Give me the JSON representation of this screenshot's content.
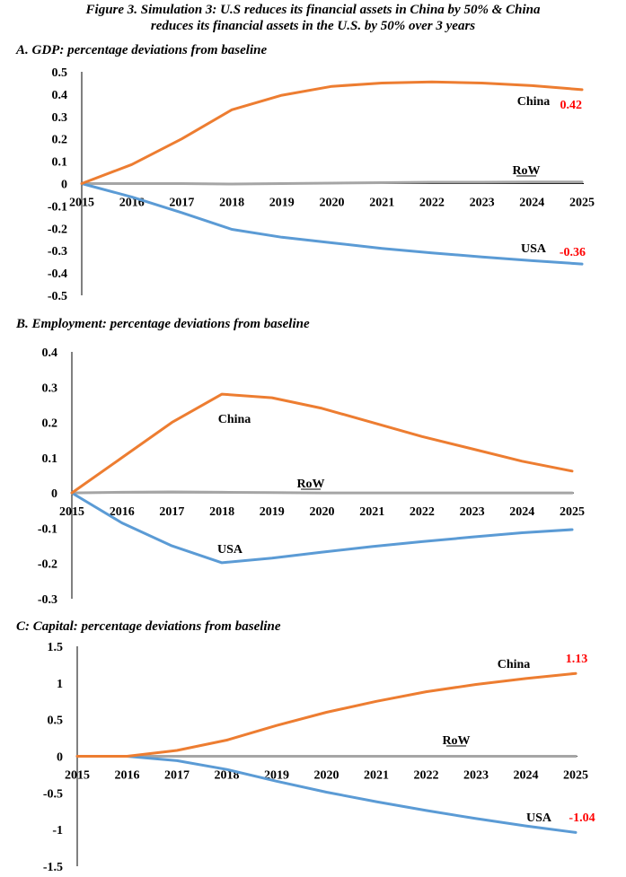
{
  "figure": {
    "title_line1": "Figure 3.  Simulation 3:  U.S reduces its financial assets in China by 50% & China",
    "title_line2": "reduces its financial assets in the U.S. by 50%  over 3 years"
  },
  "colors": {
    "china": "#ED7D31",
    "usa": "#5B9BD5",
    "row": "#A5A5A5",
    "value_label": "#FF0000"
  },
  "chart_data": [
    {
      "id": "gdp",
      "type": "line",
      "title": "A.  GDP: percentage deviations from baseline",
      "categories": [
        "2015",
        "2016",
        "2017",
        "2018",
        "2019",
        "2020",
        "2021",
        "2022",
        "2023",
        "2024",
        "2025"
      ],
      "ylim": [
        -0.5,
        0.5
      ],
      "yticks": [
        "0.5",
        "0.4",
        "0.3",
        "0.2",
        "0.1",
        "0",
        "-0.1",
        "-0.2",
        "-0.3",
        "-0.4",
        "-0.5"
      ],
      "series": [
        {
          "name": "China",
          "color_key": "china",
          "values": [
            0,
            0.085,
            0.2,
            0.33,
            0.395,
            0.435,
            0.45,
            0.455,
            0.45,
            0.438,
            0.42
          ],
          "end_label": "0.42"
        },
        {
          "name": "RoW",
          "color_key": "row",
          "values": [
            0,
            0,
            0,
            -0.002,
            0,
            0.002,
            0.004,
            0.006,
            0.006,
            0.007,
            0.007
          ],
          "end_label": ""
        },
        {
          "name": "USA",
          "color_key": "usa",
          "values": [
            0,
            -0.06,
            -0.13,
            -0.205,
            -0.24,
            -0.265,
            -0.29,
            -0.31,
            -0.328,
            -0.345,
            -0.36
          ],
          "end_label": "-0.36"
        }
      ]
    },
    {
      "id": "employment",
      "type": "line",
      "title": "B.  Employment: percentage deviations from baseline",
      "categories": [
        "2015",
        "2016",
        "2017",
        "2018",
        "2019",
        "2020",
        "2021",
        "2022",
        "2023",
        "2024",
        "2025"
      ],
      "ylim": [
        -0.3,
        0.4
      ],
      "yticks": [
        "0.4",
        "0.3",
        "0.2",
        "0.1",
        "0",
        "-0.1",
        "-0.2",
        "-0.3"
      ],
      "series": [
        {
          "name": "China",
          "color_key": "china",
          "values": [
            0,
            0.1,
            0.2,
            0.28,
            0.27,
            0.24,
            0.2,
            0.16,
            0.125,
            0.09,
            0.062
          ],
          "end_label": ""
        },
        {
          "name": "RoW",
          "color_key": "row",
          "values": [
            0,
            0.002,
            0.003,
            0.002,
            0.001,
            0,
            0,
            0,
            0,
            0,
            0
          ],
          "end_label": ""
        },
        {
          "name": "USA",
          "color_key": "usa",
          "values": [
            0,
            -0.085,
            -0.15,
            -0.198,
            -0.185,
            -0.168,
            -0.152,
            -0.138,
            -0.125,
            -0.113,
            -0.104
          ],
          "end_label": ""
        }
      ]
    },
    {
      "id": "capital",
      "type": "line",
      "title": "C:  Capital: percentage deviations from baseline",
      "categories": [
        "2015",
        "2016",
        "2017",
        "2018",
        "2019",
        "2020",
        "2021",
        "2022",
        "2023",
        "2024",
        "2025"
      ],
      "ylim": [
        -1.5,
        1.5
      ],
      "yticks": [
        "1.5",
        "1",
        "0.5",
        "0",
        "-0.5",
        "-1",
        "-1.5"
      ],
      "series": [
        {
          "name": "China",
          "color_key": "china",
          "values": [
            0,
            0,
            0.08,
            0.22,
            0.42,
            0.6,
            0.75,
            0.88,
            0.98,
            1.06,
            1.13
          ],
          "end_label": "1.13"
        },
        {
          "name": "RoW",
          "color_key": "row",
          "values": [
            0,
            0,
            0,
            0,
            0,
            0,
            0,
            0,
            0,
            0,
            0
          ],
          "end_label": ""
        },
        {
          "name": "USA",
          "color_key": "usa",
          "values": [
            0,
            0,
            -0.06,
            -0.18,
            -0.34,
            -0.49,
            -0.62,
            -0.74,
            -0.85,
            -0.95,
            -1.04
          ],
          "end_label": "-1.04"
        }
      ]
    }
  ]
}
